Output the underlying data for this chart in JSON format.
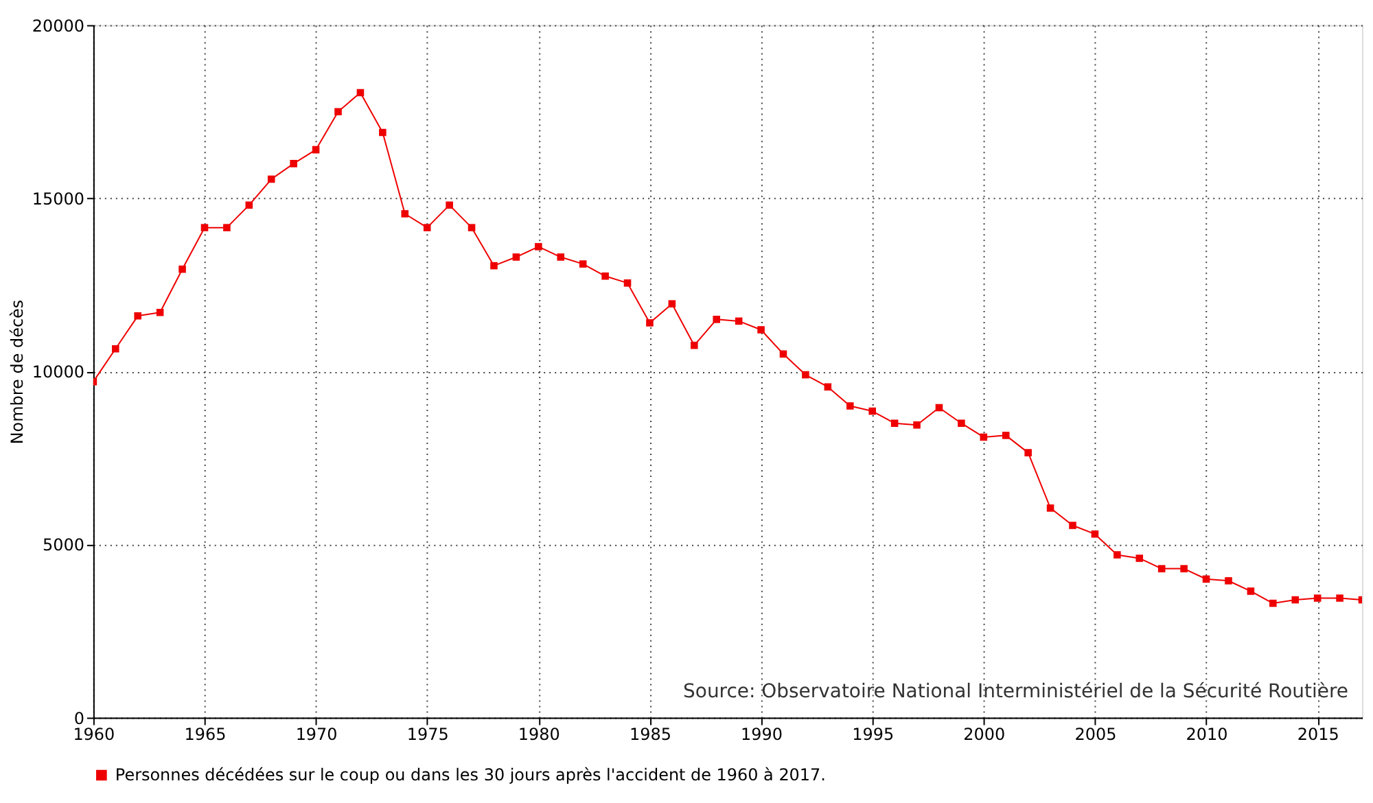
{
  "chart_data": {
    "type": "line",
    "ylabel": "Nombre de décès",
    "x": [
      1960,
      1961,
      1962,
      1963,
      1964,
      1965,
      1966,
      1967,
      1968,
      1969,
      1970,
      1971,
      1972,
      1973,
      1974,
      1975,
      1976,
      1977,
      1978,
      1979,
      1980,
      1981,
      1982,
      1983,
      1984,
      1985,
      1986,
      1987,
      1988,
      1989,
      1990,
      1991,
      1992,
      1993,
      1994,
      1995,
      1996,
      1997,
      1998,
      1999,
      2000,
      2001,
      2002,
      2003,
      2004,
      2005,
      2006,
      2007,
      2008,
      2009,
      2010,
      2011,
      2012,
      2013,
      2014,
      2015,
      2016,
      2017
    ],
    "series": [
      {
        "name": "Personnes décédées sur le coup ou dans les 30 jours après l'accident de 1960 à 2017.",
        "color": "#ee0000",
        "values": [
          9700,
          10650,
          11600,
          11700,
          12950,
          14150,
          14150,
          14800,
          15550,
          16000,
          16400,
          17500,
          18050,
          16900,
          14550,
          14150,
          14800,
          14150,
          13050,
          13300,
          13600,
          13300,
          13100,
          12750,
          12550,
          11400,
          11950,
          10750,
          11500,
          11450,
          11200,
          10500,
          9900,
          9550,
          9000,
          8850,
          8500,
          8450,
          8950,
          8500,
          8100,
          8150,
          7650,
          6050,
          5550,
          5300,
          4700,
          4600,
          4300,
          4300,
          4000,
          3950,
          3650,
          3300,
          3400,
          3450,
          3450,
          3400
        ]
      }
    ],
    "xlim": [
      1960,
      2017
    ],
    "xticks": [
      1960,
      1965,
      1970,
      1975,
      1980,
      1985,
      1990,
      1995,
      2000,
      2005,
      2010,
      2015
    ],
    "ylim": [
      0,
      20000
    ],
    "yticks": [
      0,
      5000,
      10000,
      15000,
      20000
    ],
    "grid": true,
    "legend": "bottom",
    "marker": "square",
    "line_style": "solid",
    "annotations": [
      "Source: Observatoire National Interministériel de la Sécurité Routière"
    ]
  }
}
